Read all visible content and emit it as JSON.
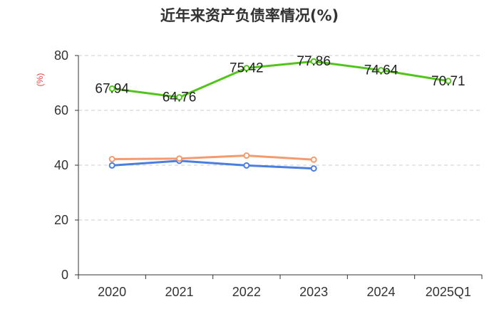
{
  "chart_data": {
    "type": "line",
    "title": "近年来资产负债率情况(%)",
    "ylabel": "(%)",
    "ylabel_color": "#e8433a",
    "categories": [
      "2020",
      "2021",
      "2022",
      "2023",
      "2024",
      "2025Q1"
    ],
    "ylim": [
      0,
      80
    ],
    "yticks": [
      0,
      20,
      40,
      60,
      80
    ],
    "grid": true,
    "series": [
      {
        "values": [
          67.94,
          64.76,
          75.42,
          77.86,
          74.64,
          70.71
        ],
        "color": "#52c41a",
        "show_labels": true
      },
      {
        "values": [
          42.2,
          42.4,
          43.5,
          42.0,
          null,
          null
        ],
        "color": "#f39b6d",
        "show_labels": false
      },
      {
        "values": [
          39.9,
          41.6,
          39.9,
          38.8,
          null,
          null
        ],
        "color": "#4a7fe0",
        "show_labels": false
      }
    ]
  }
}
